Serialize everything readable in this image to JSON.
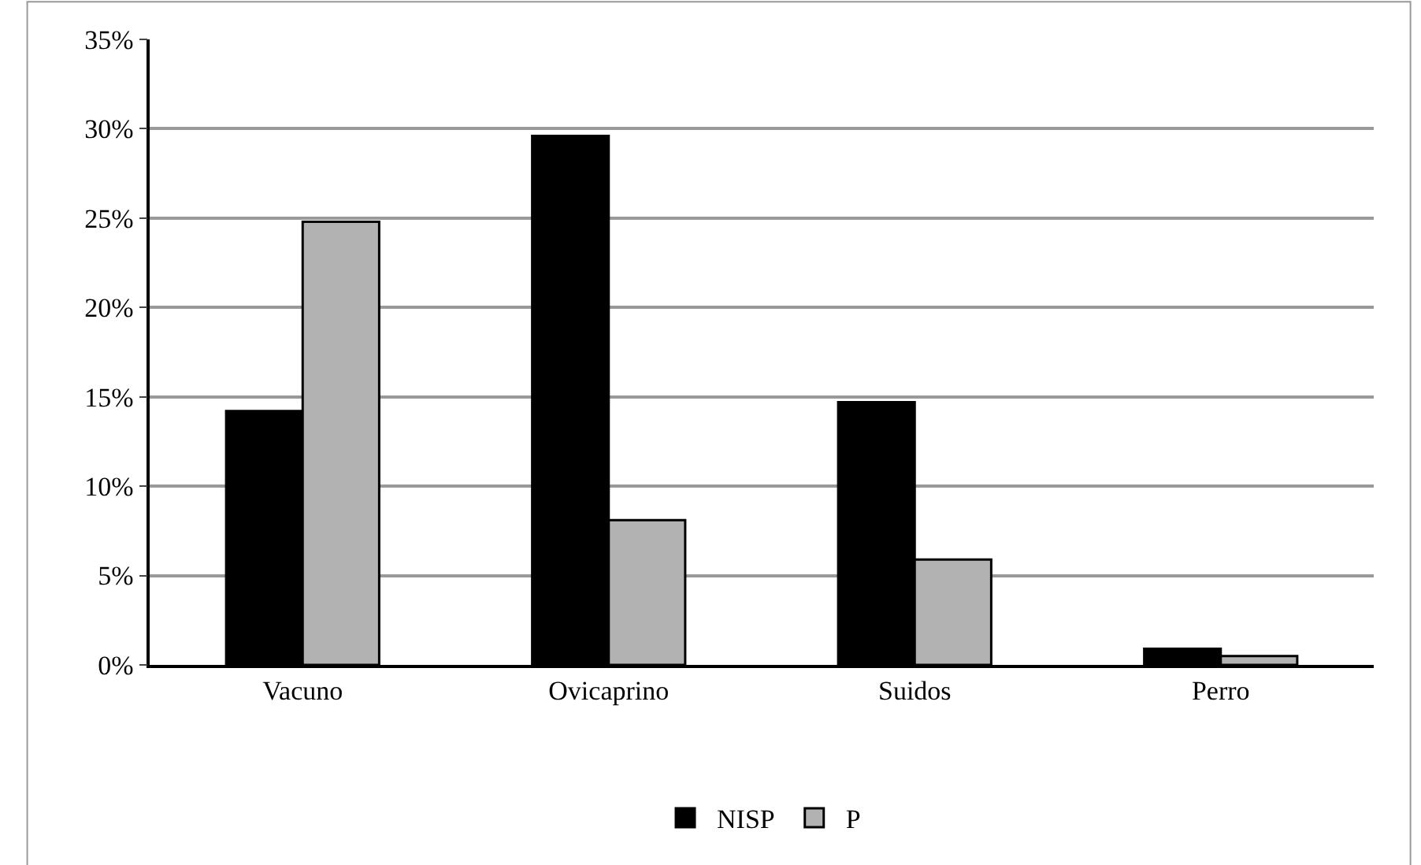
{
  "chart_data": {
    "type": "bar",
    "categories": [
      "Vacuno",
      "Ovicaprino",
      "Suidos",
      "Perro"
    ],
    "series": [
      {
        "name": "NISP",
        "color": "#000000",
        "values": [
          14.2,
          29.6,
          14.7,
          0.9
        ]
      },
      {
        "name": "P",
        "color": "#b2b2b2",
        "values": [
          24.8,
          8.1,
          5.9,
          0.5
        ]
      }
    ],
    "ylim": [
      0,
      35
    ],
    "yticks": [
      {
        "value": 0,
        "label": "0%"
      },
      {
        "value": 5,
        "label": "5%"
      },
      {
        "value": 10,
        "label": "10%"
      },
      {
        "value": 15,
        "label": "15%"
      },
      {
        "value": 20,
        "label": "20%"
      },
      {
        "value": 25,
        "label": "25%"
      },
      {
        "value": 30,
        "label": "30%"
      },
      {
        "value": 35,
        "label": "35%"
      }
    ],
    "grid": "y",
    "legend": "bottom"
  }
}
